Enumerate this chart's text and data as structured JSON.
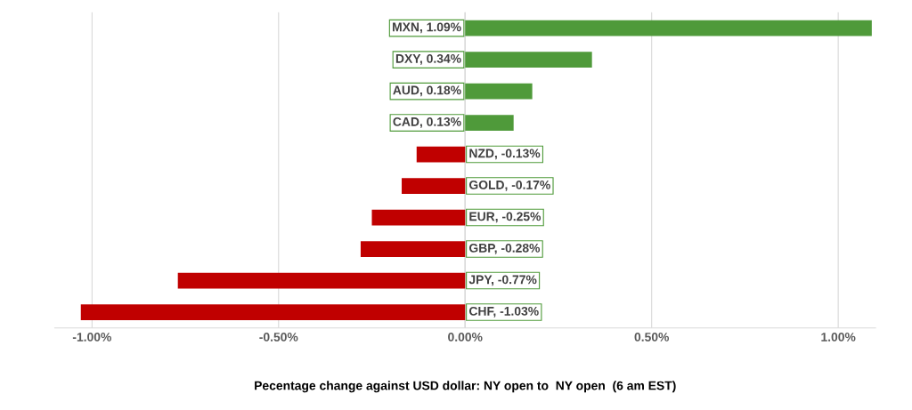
{
  "chart_data": {
    "type": "bar",
    "orientation": "horizontal",
    "xlabel": "Pecentage change against USD dollar: NY open to  NY open  (6 am EST)",
    "categories": [
      null,
      null,
      null,
      null,
      null,
      null,
      null,
      null,
      null,
      null
    ],
    "values": [
      1.09,
      0.34,
      0.18,
      0.13,
      -0.13,
      -0.17,
      -0.25,
      -0.28,
      -0.77,
      -1.03
    ],
    "colors": [
      "#4f9a3a",
      "#4f9a3a",
      "#4f9a3a",
      "#4f9a3a",
      "#c00000",
      "#c00000",
      "#c00000",
      "#c00000",
      "#c00000",
      "#c00000"
    ],
    "value_labels": [
      "MXN, 1.09%",
      "DXY, 0.34%",
      "AUD, 0.18%",
      "CAD, 0.13%",
      "NZD, -0.13%",
      "GOLD, -0.17%",
      "EUR, -0.25%",
      "GBP, -0.28%",
      "JPY, -0.77%",
      "CHF, -1.03%"
    ],
    "xlim": [
      -1.1,
      1.1
    ],
    "xticks": [
      {
        "value": -1.0,
        "label": "-1.00%"
      },
      {
        "value": -0.5,
        "label": "-0.50%"
      },
      {
        "value": 0,
        "label": "0.00%"
      },
      {
        "value": 0.5,
        "label": "0.50%"
      },
      {
        "value": 1.0,
        "label": "1.00%"
      }
    ],
    "grid": "x"
  }
}
